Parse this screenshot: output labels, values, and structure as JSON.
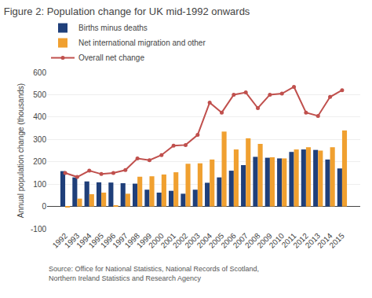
{
  "chart_data": {
    "type": "bar",
    "title": "Figure 2: Population change for UK mid-1992 onwards",
    "ylabel": "Annual population change (thousands)",
    "categories": [
      "1992",
      "1993",
      "1994",
      "1995",
      "1996",
      "1997",
      "1998",
      "1999",
      "2000",
      "2001",
      "2002",
      "2003",
      "2004",
      "2005",
      "2006",
      "2007",
      "2008",
      "2009",
      "2010",
      "2011",
      "2012",
      "2013",
      "2014",
      "2015"
    ],
    "series": [
      {
        "name": "Births minus deaths",
        "type": "bar",
        "color": "#1f3f7a",
        "values": [
          158,
          130,
          112,
          108,
          107,
          104,
          102,
          75,
          62,
          70,
          57,
          75,
          106,
          130,
          160,
          185,
          222,
          218,
          215,
          244,
          255,
          253,
          210,
          170
        ]
      },
      {
        "name": "Net international migration and other",
        "type": "bar",
        "color": "#f0a030",
        "values": [
          -5,
          35,
          55,
          62,
          5,
          57,
          133,
          135,
          143,
          153,
          191,
          193,
          210,
          335,
          255,
          305,
          280,
          220,
          215,
          255,
          265,
          250,
          265,
          340
        ]
      },
      {
        "name": "Overall net change",
        "type": "line",
        "marker": "circle",
        "color": "#c0504d",
        "values": [
          150,
          132,
          160,
          145,
          150,
          163,
          215,
          207,
          230,
          272,
          275,
          320,
          465,
          420,
          500,
          510,
          440,
          500,
          505,
          535,
          420,
          405,
          490,
          520
        ]
      }
    ],
    "ylim": [
      -100,
      600
    ],
    "yticks": [
      -100,
      0,
      100,
      200,
      300,
      400,
      500,
      600
    ],
    "grid": true,
    "legend": "upper left",
    "annotations": [
      "Source: Office for National Statistics, National Records of Scotland,\nNorthern Ireland Statistics and Research Agency"
    ]
  }
}
